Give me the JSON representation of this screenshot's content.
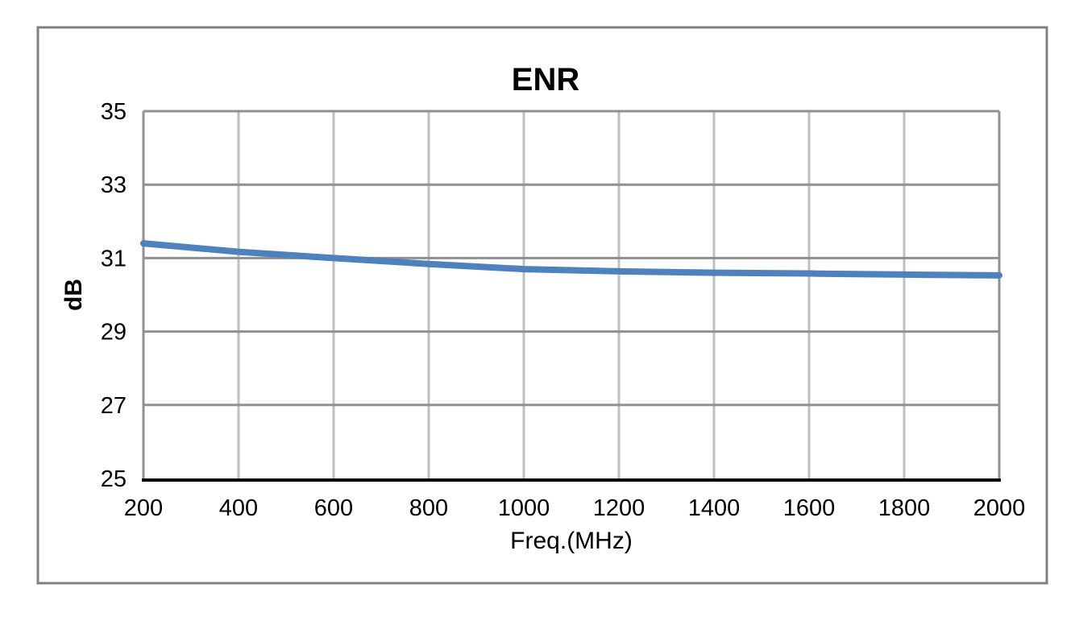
{
  "chart_data": {
    "type": "line",
    "title": "ENR",
    "xlabel": "Freq.(MHz)",
    "ylabel": "dB",
    "x": [
      200,
      400,
      600,
      800,
      1000,
      1200,
      1400,
      1600,
      1800,
      2000
    ],
    "series": [
      {
        "name": "ENR",
        "values": [
          31.4,
          31.17,
          31.0,
          30.84,
          30.7,
          30.64,
          30.6,
          30.58,
          30.55,
          30.53
        ]
      }
    ],
    "xlim": [
      200,
      2000
    ],
    "ylim": [
      25,
      35
    ],
    "xticks": [
      200,
      400,
      600,
      800,
      1000,
      1200,
      1400,
      1600,
      1800,
      2000
    ],
    "yticks": [
      25,
      27,
      29,
      31,
      33,
      35
    ],
    "grid": true,
    "legend": false,
    "colors": {
      "series_line": "#4F81BD",
      "h_gridline": "#909090",
      "v_gridline": "#BFBFBF",
      "plot_frame": "#909090",
      "bottom_axis": "#000000",
      "chart_border": "#808080",
      "text": "#000000",
      "background": "#FFFFFF"
    }
  }
}
